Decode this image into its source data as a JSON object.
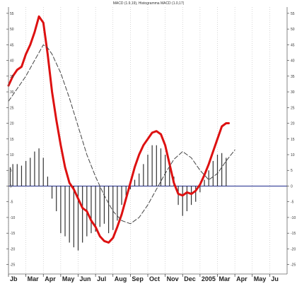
{
  "chart_data": {
    "type": "line",
    "title": "MACD (1.9,19), Histogramma MACD (1.0,17)",
    "xlabel": "",
    "ylabel": "",
    "ylim": [
      -28,
      57
    ],
    "y_ticks": [
      -25,
      -20,
      -15,
      -10,
      -5,
      0,
      5,
      10,
      15,
      20,
      25,
      30,
      35,
      40,
      45,
      50,
      55
    ],
    "y_tick_labels": [
      "-25",
      "-20",
      "-15",
      "-10",
      "-5",
      "0",
      "5",
      "10",
      "15",
      "20",
      "25",
      "30",
      "35",
      "40",
      "45",
      "50",
      "55"
    ],
    "x_ticks": [
      {
        "label": "Jb",
        "x": 1
      },
      {
        "label": "Mar",
        "x": 3
      },
      {
        "label": "Apr",
        "x": 5
      },
      {
        "label": "May",
        "x": 7
      },
      {
        "label": "Jun",
        "x": 9
      },
      {
        "label": "Jul",
        "x": 11
      },
      {
        "label": "Aug",
        "x": 13
      },
      {
        "label": "Sep",
        "x": 15
      },
      {
        "label": "Oct",
        "x": 17
      },
      {
        "label": "Nov",
        "x": 19
      },
      {
        "label": "Dec",
        "x": 21
      },
      {
        "label": "2005",
        "x": 23
      },
      {
        "label": "Mar",
        "x": 25
      },
      {
        "label": "Apr",
        "x": 27
      },
      {
        "label": "May",
        "x": 29
      },
      {
        "label": "Ju",
        "x": 31
      }
    ],
    "xlim": [
      0,
      32
    ],
    "zero_line": 0,
    "grid": "vertical dotted",
    "series": [
      {
        "color": "#dd1111",
        "style": "solid-thick",
        "points": [
          [
            0,
            32
          ],
          [
            0.5,
            35
          ],
          [
            1,
            37
          ],
          [
            1.5,
            38
          ],
          [
            2,
            42
          ],
          [
            2.5,
            45
          ],
          [
            3,
            49
          ],
          [
            3.5,
            54
          ],
          [
            4,
            52
          ],
          [
            4.5,
            42
          ],
          [
            5,
            30
          ],
          [
            5.5,
            21
          ],
          [
            6,
            13
          ],
          [
            6.5,
            6
          ],
          [
            7,
            1
          ],
          [
            7.5,
            -1
          ],
          [
            8,
            -4
          ],
          [
            8.5,
            -7
          ],
          [
            9,
            -8
          ],
          [
            9.5,
            -11
          ],
          [
            10,
            -13
          ],
          [
            10.5,
            -16
          ],
          [
            11,
            -17.5
          ],
          [
            11.5,
            -18
          ],
          [
            12,
            -16.5
          ],
          [
            12.5,
            -13
          ],
          [
            13,
            -9
          ],
          [
            13.5,
            -4
          ],
          [
            14,
            1
          ],
          [
            14.5,
            6
          ],
          [
            15,
            10
          ],
          [
            15.5,
            13
          ],
          [
            16,
            15
          ],
          [
            16.5,
            17
          ],
          [
            17,
            17.5
          ],
          [
            17.5,
            16.5
          ],
          [
            18,
            13
          ],
          [
            18.5,
            7
          ],
          [
            19,
            1
          ],
          [
            19.5,
            -2.5
          ],
          [
            20,
            -3
          ],
          [
            20.5,
            -2
          ],
          [
            21,
            -2.5
          ],
          [
            21.5,
            -1.5
          ],
          [
            22,
            0.5
          ],
          [
            22.5,
            3.5
          ],
          [
            23,
            7
          ],
          [
            23.5,
            11
          ],
          [
            24,
            15
          ],
          [
            24.5,
            19
          ],
          [
            25,
            20
          ],
          [
            25.3,
            20
          ]
        ]
      },
      {
        "color": "#444444",
        "style": "dashed",
        "points": [
          [
            0,
            27
          ],
          [
            1,
            31
          ],
          [
            2,
            35
          ],
          [
            3,
            40
          ],
          [
            4,
            45
          ],
          [
            4.5,
            44
          ],
          [
            5,
            42
          ],
          [
            6,
            36
          ],
          [
            7,
            28
          ],
          [
            8,
            19
          ],
          [
            9,
            10
          ],
          [
            10,
            3
          ],
          [
            11,
            -3
          ],
          [
            12,
            -8
          ],
          [
            13,
            -11
          ],
          [
            14,
            -12
          ],
          [
            15,
            -10
          ],
          [
            16,
            -6
          ],
          [
            17,
            -1
          ],
          [
            18,
            4
          ],
          [
            19,
            8.5
          ],
          [
            20,
            11
          ],
          [
            21,
            9
          ],
          [
            22,
            5
          ],
          [
            23,
            2
          ],
          [
            24,
            4
          ],
          [
            25,
            8
          ],
          [
            26,
            11.5
          ]
        ]
      }
    ],
    "histogram": {
      "color": "#333333",
      "x": [
        0.2,
        0.5,
        1,
        1.5,
        2,
        2.5,
        3,
        3.5,
        4,
        4.5,
        5,
        5.5,
        6,
        6.5,
        7,
        7.5,
        8,
        8.5,
        9,
        9.5,
        10,
        10.5,
        11,
        11.5,
        12,
        12.5,
        13,
        13.5,
        14,
        14.5,
        15,
        15.5,
        16,
        16.5,
        17,
        17.5,
        18,
        18.5,
        19,
        19.5,
        20,
        20.5,
        21,
        21.5,
        22,
        22.5,
        23,
        23.5,
        24,
        24.5,
        25,
        25.5
      ],
      "values": [
        6,
        7,
        7,
        6.5,
        8,
        9,
        11,
        12,
        9,
        3,
        -4,
        -8,
        -15,
        -16,
        -18,
        -19.5,
        -20.5,
        -18,
        -16,
        -15,
        -14.5,
        -13,
        -12,
        -15,
        -14,
        -11,
        -6,
        -3,
        -1,
        2,
        4,
        7,
        10,
        13,
        13,
        12,
        10,
        8,
        3,
        -6,
        -9.5,
        -8,
        -6,
        -5,
        -2,
        2,
        5,
        8,
        10,
        10.5,
        9,
        0
      ],
      "zero_ref_line_color": "#1f2a8c"
    }
  }
}
